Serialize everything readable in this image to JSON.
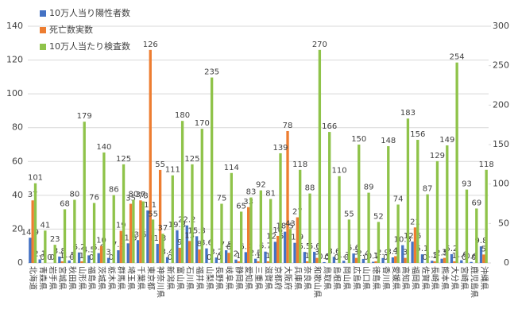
{
  "chart_data": {
    "type": "bar",
    "categories": [
      "北海道",
      "青森県",
      "岩手県",
      "宮城県",
      "秋田県",
      "山形県",
      "福島県",
      "茨城県",
      "栃木県",
      "群馬県",
      "埼玉県",
      "千葉県",
      "東京都",
      "神奈川県",
      "新潟県",
      "富山県",
      "石川県",
      "福井県",
      "山梨県",
      "長野県",
      "岐阜県",
      "静岡県",
      "愛知県",
      "三重県",
      "滋賀県",
      "京都府",
      "大阪府",
      "兵庫県",
      "奈良県",
      "和歌山県",
      "鳥取県",
      "島根県",
      "岡山県",
      "広島県",
      "山口県",
      "徳島県",
      "香川県",
      "愛媛県",
      "高知県",
      "福岡県",
      "佐賀県",
      "長崎県",
      "熊本県",
      "大分県",
      "宮崎県",
      "鹿児島県",
      "沖縄県"
    ],
    "series": [
      {
        "name": "10万人当り陽性者数",
        "color": "#4472c4",
        "values": [
          14.9,
          2.1,
          0,
          3.8,
          1.5,
          6.2,
          4.5,
          5.8,
          3,
          7.5,
          11.6,
          13.5,
          31.1,
          11.3,
          3.4,
          19.3,
          22.2,
          15.8,
          8.6,
          3.2,
          7.5,
          2,
          6.4,
          2.5,
          6.7,
          12.5,
          18.5,
          11.9,
          6.5,
          6.6,
          0.5,
          3.6,
          1.3,
          5.6,
          2.4,
          0.7,
          2.9,
          3.3,
          10.5,
          12.6,
          5.1,
          1.3,
          2.5,
          5.2,
          1.6,
          0.6,
          9.8
        ]
      },
      {
        "name": "死亡数実数",
        "color": "#ed7d31",
        "values": [
          37,
          0,
          0,
          1,
          0,
          1,
          0,
          10,
          0,
          19,
          35,
          37,
          126,
          55,
          0,
          9,
          13,
          8,
          0,
          0,
          6,
          1,
          33,
          1,
          1,
          16,
          78,
          27,
          1,
          3,
          0,
          0,
          0,
          3,
          0,
          1,
          0,
          4,
          3,
          21,
          0,
          1,
          3,
          1,
          0,
          0,
          5
        ]
      },
      {
        "name": "10万人当たり検査数",
        "color": "#8fc34a",
        "axis": "y2",
        "values": [
          101,
          41,
          23,
          68,
          80,
          179,
          76,
          140,
          86,
          125,
          80,
          78,
          55,
          37,
          111,
          180,
          125,
          170,
          235,
          75,
          114,
          65,
          83,
          92,
          81,
          139,
          43,
          118,
          88,
          270,
          166,
          110,
          55,
          150,
          89,
          52,
          148,
          74,
          183,
          156,
          87,
          129,
          149,
          254,
          93,
          69,
          118
        ]
      }
    ],
    "ylim": [
      0,
      140
    ],
    "yticks": [
      0,
      20,
      40,
      60,
      80,
      100,
      120,
      140
    ],
    "y2lim": [
      0,
      300
    ],
    "y2ticks": [
      0,
      50,
      100,
      150,
      200,
      250,
      300
    ],
    "legend": "top-left"
  }
}
